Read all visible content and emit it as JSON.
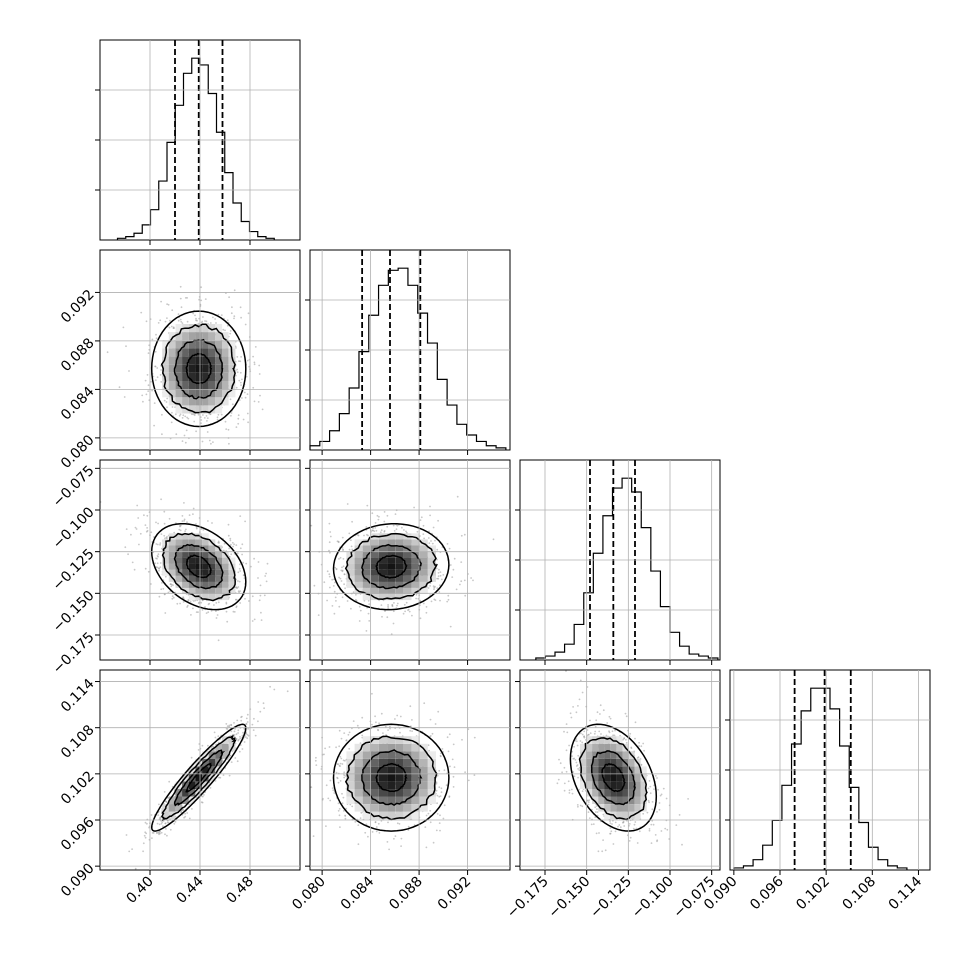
{
  "chart_data": {
    "type": "corner",
    "title": "",
    "parameters": [
      {
        "name": "",
        "range": [
          0.36,
          0.52
        ],
        "ticks": [
          "0.40",
          "0.44",
          "0.48"
        ],
        "tick_values": [
          0.4,
          0.44,
          0.48
        ],
        "quantiles": [
          0.42,
          0.439,
          0.458
        ],
        "mean": 0.439,
        "sd": 0.019
      },
      {
        "name": "",
        "range": [
          0.079,
          0.0955
        ],
        "ticks": [
          "0.080",
          "0.084",
          "0.088",
          "0.092"
        ],
        "tick_values": [
          0.08,
          0.084,
          0.088,
          0.092
        ],
        "quantiles": [
          0.0833,
          0.0856,
          0.0881
        ],
        "mean": 0.0857,
        "sd": 0.0024
      },
      {
        "name": "",
        "range": [
          -0.19,
          -0.07
        ],
        "ticks": [
          "−0.175",
          "−0.150",
          "−0.125",
          "−0.100",
          "−0.075"
        ],
        "tick_values": [
          -0.175,
          -0.15,
          -0.125,
          -0.1,
          -0.075
        ],
        "quantiles": [
          -0.148,
          -0.134,
          -0.121
        ],
        "mean": -0.134,
        "sd": 0.013
      },
      {
        "name": "",
        "range": [
          0.0895,
          0.1155
        ],
        "ticks": [
          "0.090",
          "0.096",
          "0.102",
          "0.108",
          "0.114"
        ],
        "tick_values": [
          0.09,
          0.096,
          0.102,
          0.108,
          0.114
        ],
        "quantiles": [
          0.0979,
          0.1018,
          0.1052
        ],
        "mean": 0.1015,
        "sd": 0.0035
      }
    ],
    "correlations": [
      {
        "pair": [
          0,
          1
        ],
        "rho": 0.0
      },
      {
        "pair": [
          0,
          2
        ],
        "rho": -0.35
      },
      {
        "pair": [
          1,
          2
        ],
        "rho": 0.05
      },
      {
        "pair": [
          0,
          3
        ],
        "rho": 0.93
      },
      {
        "pair": [
          1,
          3
        ],
        "rho": 0.0
      },
      {
        "pair": [
          2,
          3
        ],
        "rho": -0.35
      }
    ],
    "histograms": [
      {
        "param": 0,
        "bin_start": 0.374,
        "bin_width": 0.0066,
        "counts": [
          1,
          2,
          4,
          9,
          18,
          35,
          58,
          80,
          99,
          108,
          104,
          87,
          64,
          40,
          22,
          11,
          5,
          2,
          1
        ]
      },
      {
        "param": 1,
        "bin_start": 0.079,
        "bin_width": 0.000808,
        "counts": [
          2,
          4,
          9,
          17,
          29,
          46,
          63,
          77,
          84,
          85,
          77,
          64,
          50,
          33,
          21,
          12,
          7,
          4,
          2,
          1
        ]
      },
      {
        "param": 2,
        "bin_start": -0.1805,
        "bin_width": 0.00575,
        "counts": [
          1,
          2,
          4,
          8,
          18,
          34,
          54,
          73,
          87,
          92,
          85,
          67,
          45,
          27,
          14,
          7,
          3,
          2,
          1
        ]
      },
      {
        "param": 3,
        "bin_start": 0.09,
        "bin_width": 0.00125,
        "counts": [
          1,
          2,
          5,
          12,
          24,
          41,
          61,
          77,
          88,
          88,
          78,
          60,
          40,
          23,
          11,
          5,
          2,
          1
        ]
      }
    ],
    "contour_levels": [
      0.12,
      0.39,
      0.68,
      0.86
    ],
    "colors": {
      "ink": "#000000",
      "grid": "#b0b0b0",
      "points": "#9a9a9a"
    },
    "grid": true,
    "quantile_line_style": "dashed"
  }
}
